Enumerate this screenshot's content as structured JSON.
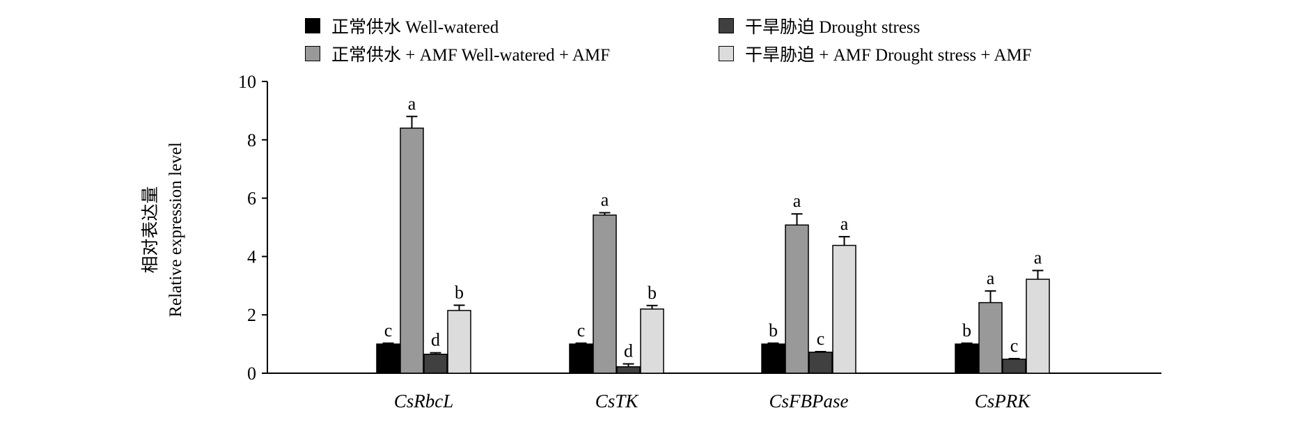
{
  "chart_data": {
    "type": "bar",
    "ylabel_cn": "相对表达量",
    "ylabel_en": "Relative expression level",
    "ylim": [
      0,
      10
    ],
    "yticks": [
      0,
      2,
      4,
      6,
      8,
      10
    ],
    "categories": [
      "CsRbcL",
      "CsTK",
      "CsFBPase",
      "CsPRK"
    ],
    "series": [
      {
        "name": "正常供水 Well-watered",
        "color": "#000000",
        "values": [
          1.0,
          1.0,
          1.0,
          1.0
        ],
        "errors": [
          0.03,
          0.03,
          0.03,
          0.03
        ],
        "labels": [
          "c",
          "c",
          "b",
          "b"
        ]
      },
      {
        "name": "正常供水 + AMF Well-watered + AMF",
        "color": "#999999",
        "values": [
          8.4,
          5.42,
          5.08,
          2.42
        ],
        "errors": [
          0.4,
          0.08,
          0.38,
          0.4
        ],
        "labels": [
          "a",
          "a",
          "a",
          "a"
        ]
      },
      {
        "name": "干旱胁迫 Drought stress",
        "color": "#404040",
        "values": [
          0.65,
          0.22,
          0.72,
          0.48
        ],
        "errors": [
          0.05,
          0.1,
          0.02,
          0.02
        ],
        "labels": [
          "d",
          "d",
          "c",
          "c"
        ]
      },
      {
        "name": "干旱胁迫 + AMF Drought stress + AMF",
        "color": "#dcdcdc",
        "values": [
          2.15,
          2.2,
          4.38,
          3.22
        ],
        "errors": [
          0.18,
          0.12,
          0.3,
          0.3
        ],
        "labels": [
          "b",
          "b",
          "a",
          "a"
        ]
      }
    ],
    "legend_position": "top",
    "grid": false
  },
  "legend": [
    {
      "label": "正常供水 Well-watered",
      "color": "#000000"
    },
    {
      "label": "干旱胁迫  Drought stress",
      "color": "#404040"
    },
    {
      "label": "正常供水 + AMF  Well-watered + AMF",
      "color": "#999999"
    },
    {
      "label": "干旱胁迫 + AMF  Drought stress + AMF",
      "color": "#dcdcdc"
    }
  ]
}
